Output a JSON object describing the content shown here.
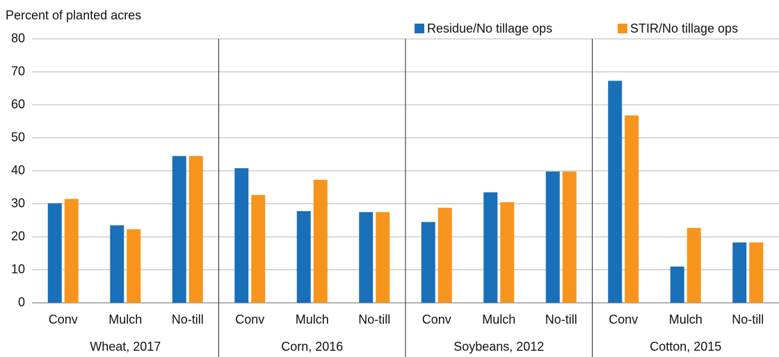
{
  "chart_data": {
    "type": "bar",
    "y_axis_label": "Percent of planted acres",
    "categories": [
      "Conv",
      "Mulch",
      "No-till",
      "Conv",
      "Mulch",
      "No-till",
      "Conv",
      "Mulch",
      "No-till",
      "Conv",
      "Mulch",
      "No-till"
    ],
    "groups": [
      "Wheat, 2017",
      "Corn, 2016",
      "Soybeans, 2012",
      "Cotton, 2015"
    ],
    "series": [
      {
        "name": "Residue/No tillage ops",
        "color": "#1a6fb9",
        "values": [
          30.2,
          23.5,
          44.5,
          40.8,
          27.8,
          27.5,
          24.5,
          33.5,
          39.8,
          67.3,
          11,
          18.3
        ]
      },
      {
        "name": "STIR/No tillage ops",
        "color": "#f7941d",
        "values": [
          31.5,
          22.3,
          44.5,
          32.7,
          37.3,
          27.5,
          28.8,
          30.5,
          39.8,
          56.8,
          22.7,
          18.3
        ]
      }
    ],
    "ylim": [
      0,
      80
    ],
    "yticks": [
      0,
      10,
      20,
      30,
      40,
      50,
      60,
      70,
      80
    ],
    "grid": true,
    "legend": "top-right"
  }
}
